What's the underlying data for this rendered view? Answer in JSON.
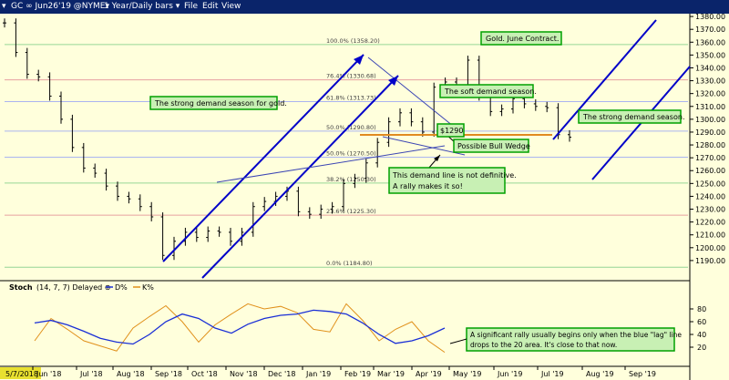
{
  "window": {
    "symbol": "GC ∞ Jun26'19 @NYME▾",
    "interval": "1 Year/Daily bars ▾",
    "menu": [
      "File",
      "Edit",
      "View"
    ]
  },
  "chart_data": [
    {
      "type": "candlestick",
      "title": "",
      "y_axis_position": "right",
      "ylim": [
        1180,
        1390
      ],
      "y_ticks": [
        1190,
        1200,
        1210,
        1220,
        1230,
        1240,
        1250,
        1260,
        1270,
        1280,
        1290,
        1300,
        1310,
        1320,
        1330,
        1340,
        1350,
        1360,
        1370,
        1380
      ],
      "x_labels": [
        "5/7/2018",
        "Jun '18",
        "Jul '18",
        "Aug '18",
        "Sep '18",
        "Oct '18",
        "Nov '18",
        "Dec '18",
        "Jan '19",
        "Feb '19",
        "Mar '19",
        "Apr '19",
        "May '19",
        "Jun '19",
        "Jul '19",
        "Aug '19",
        "Sep '19"
      ],
      "series": [
        {
          "x": [
            "2018-05-07",
            "2018-05-14",
            "2018-05-21",
            "2018-05-28",
            "2018-06-04",
            "2018-06-11",
            "2018-06-18",
            "2018-06-25",
            "2018-07-02",
            "2018-07-09",
            "2018-07-16",
            "2018-07-23",
            "2018-07-30",
            "2018-08-06",
            "2018-08-13",
            "2018-08-20",
            "2018-08-27",
            "2018-09-03",
            "2018-09-10",
            "2018-09-17",
            "2018-09-24",
            "2018-10-01",
            "2018-10-08",
            "2018-10-15",
            "2018-10-22",
            "2018-10-29",
            "2018-11-05",
            "2018-11-12",
            "2018-11-19",
            "2018-11-26",
            "2018-12-03",
            "2018-12-10",
            "2018-12-17",
            "2018-12-24",
            "2018-12-31",
            "2019-01-07",
            "2019-01-14",
            "2019-01-21",
            "2019-01-28",
            "2019-02-04",
            "2019-02-11",
            "2019-02-18",
            "2019-02-25",
            "2019-03-04",
            "2019-03-11",
            "2019-03-18",
            "2019-03-25",
            "2019-04-01",
            "2019-04-08",
            "2019-04-15",
            "2019-04-22"
          ],
          "close": [
            1375,
            1352,
            1335,
            1333,
            1318,
            1300,
            1278,
            1262,
            1258,
            1248,
            1240,
            1238,
            1232,
            1224,
            1194,
            1205,
            1212,
            1208,
            1213,
            1212,
            1205,
            1212,
            1232,
            1236,
            1240,
            1244,
            1228,
            1226,
            1230,
            1232,
            1250,
            1254,
            1266,
            1282,
            1298,
            1305,
            1298,
            1290,
            1325,
            1329,
            1325,
            1346,
            1318,
            1306,
            1308,
            1316,
            1312,
            1310,
            1309,
            1288,
            1286
          ]
        }
      ],
      "horizontal_lines": [
        {
          "label": "100.0% (1358.20)",
          "value": 1358.2
        },
        {
          "label": "76.4% (1330.68)",
          "value": 1330.68
        },
        {
          "label": "61.8% (1313.73)",
          "value": 1313.73
        },
        {
          "label": "50.0% (1290.80)",
          "value": 1290.8
        },
        {
          "label": "50.0% (1270.50)",
          "value": 1270.5
        },
        {
          "label": "38.2% (1250.30)",
          "value": 1250.3
        },
        {
          "label": "23.6% (1225.30)",
          "value": 1225.3
        },
        {
          "label": "0.0% (1184.80)",
          "value": 1184.8
        }
      ],
      "price_marker": "$1290",
      "annotations": [
        "Gold. June Contract.",
        "The strong demand season for gold.",
        "The soft demand season.",
        "The strong demand season.",
        "Possible Bull Wedge",
        "This demand line is not definitive.",
        "A rally makes it so!"
      ]
    },
    {
      "type": "line",
      "title": "Stoch",
      "params": "(14, 7, 7) Delayed ⊕",
      "legend": [
        "D%",
        "K%"
      ],
      "ylim": [
        0,
        100
      ],
      "y_ticks": [
        20,
        40,
        60,
        80
      ],
      "series": [
        {
          "name": "D%",
          "color": "#1a2fd6",
          "values": [
            58,
            62,
            55,
            45,
            34,
            28,
            25,
            40,
            60,
            72,
            65,
            50,
            42,
            56,
            65,
            70,
            72,
            78,
            76,
            72,
            58,
            40,
            26,
            30,
            38,
            50
          ]
        },
        {
          "name": "K%",
          "color": "#e0901a",
          "values": [
            30,
            65,
            48,
            30,
            22,
            14,
            50,
            68,
            85,
            60,
            28,
            55,
            72,
            88,
            80,
            84,
            74,
            48,
            44,
            88,
            62,
            30,
            48,
            60,
            30,
            12
          ]
        }
      ],
      "annotations": [
        "A significant rally usually begins only when the blue \"lag\" line",
        "drops to the 20 area.  It's close to that now."
      ]
    }
  ],
  "colors": {
    "background": "#ffffdc",
    "titlebar": "#0a246a",
    "channel": "#0000c8",
    "annotation_border": "#00a000",
    "annotation_bg": "#c8f0b4",
    "candle": "#000000",
    "hline_blue": "#aab4f0",
    "hline_green": "#96d696",
    "hline_red": "#e6a0a0",
    "orange": "#e08a20"
  }
}
